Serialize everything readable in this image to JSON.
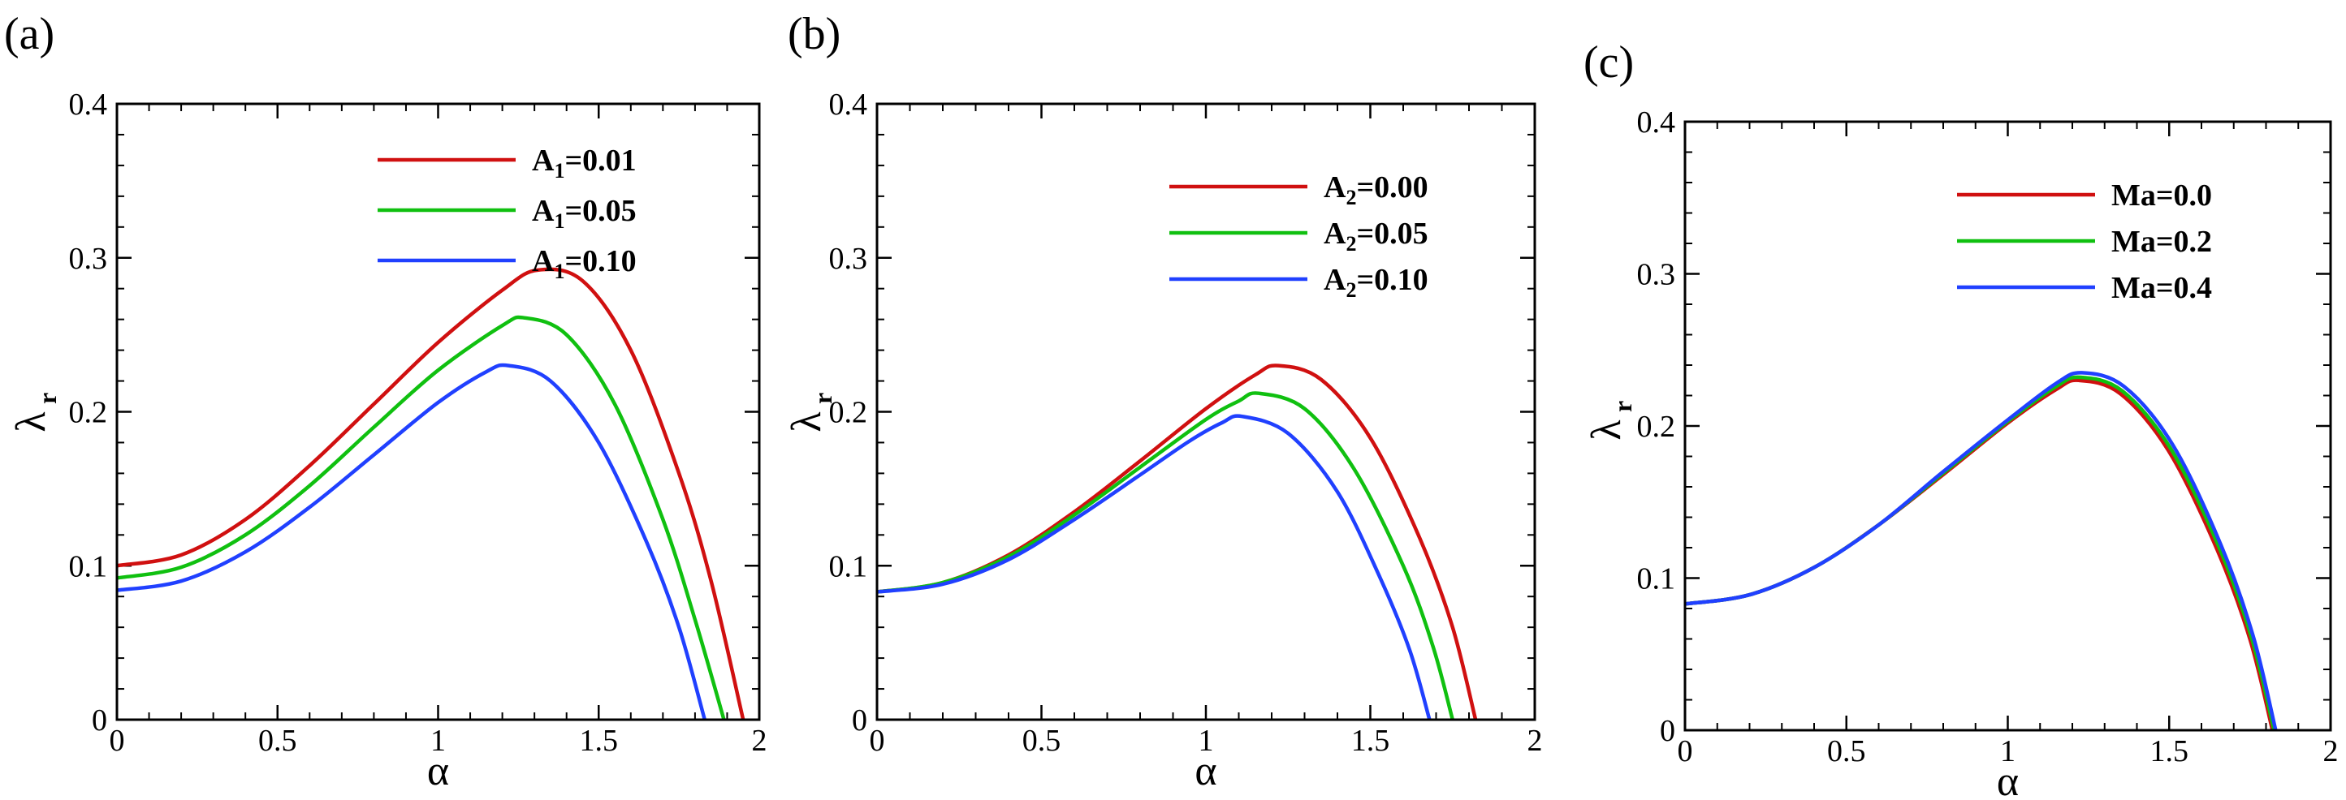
{
  "chart_data": [
    {
      "panel": "(a)",
      "type": "line",
      "xlabel": "α",
      "ylabel_symbol": "λ",
      "ylabel_subscript": "r",
      "xlim": [
        0,
        2
      ],
      "ylim": [
        0,
        0.4
      ],
      "xticks": [
        "0",
        "0.5",
        "1",
        "1.5",
        "2"
      ],
      "yticks": [
        "0",
        "0.1",
        "0.2",
        "0.3",
        "0.4"
      ],
      "legend_position": "top-right",
      "series": [
        {
          "name_main": "A",
          "name_sub": "1",
          "name_rest": "=0.01",
          "color": "#d01010",
          "x": [
            0,
            0.2,
            0.4,
            0.6,
            0.8,
            1.0,
            1.2,
            1.31,
            1.45,
            1.6,
            1.75,
            1.85,
            1.95
          ],
          "y": [
            0.1,
            0.107,
            0.13,
            0.165,
            0.205,
            0.245,
            0.279,
            0.292,
            0.285,
            0.24,
            0.16,
            0.09,
            0.0
          ]
        },
        {
          "name_main": "A",
          "name_sub": "1",
          "name_rest": "=0.05",
          "color": "#10c010",
          "x": [
            0,
            0.2,
            0.4,
            0.6,
            0.8,
            1.0,
            1.2,
            1.27,
            1.4,
            1.55,
            1.7,
            1.8,
            1.89
          ],
          "y": [
            0.092,
            0.099,
            0.12,
            0.152,
            0.19,
            0.227,
            0.256,
            0.261,
            0.25,
            0.205,
            0.13,
            0.065,
            0.0
          ]
        },
        {
          "name_main": "A",
          "name_sub": "1",
          "name_rest": "=0.10",
          "color": "#2040ff",
          "x": [
            0,
            0.2,
            0.4,
            0.6,
            0.8,
            1.0,
            1.15,
            1.22,
            1.35,
            1.5,
            1.65,
            1.75,
            1.83
          ],
          "y": [
            0.084,
            0.09,
            0.109,
            0.138,
            0.172,
            0.206,
            0.226,
            0.23,
            0.22,
            0.18,
            0.115,
            0.06,
            0.0
          ]
        }
      ]
    },
    {
      "panel": "(b)",
      "type": "line",
      "xlabel": "α",
      "ylabel_symbol": "λ",
      "ylabel_subscript": "r",
      "xlim": [
        0,
        2
      ],
      "ylim": [
        0,
        0.4
      ],
      "xticks": [
        "0",
        "0.5",
        "1",
        "1.5",
        "2"
      ],
      "yticks": [
        "0",
        "0.1",
        "0.2",
        "0.3",
        "0.4"
      ],
      "legend_position": "top-right",
      "series": [
        {
          "name_main": "A",
          "name_sub": "2",
          "name_rest": "=0.00",
          "color": "#d01010",
          "x": [
            0,
            0.2,
            0.4,
            0.6,
            0.8,
            1.0,
            1.15,
            1.22,
            1.35,
            1.5,
            1.65,
            1.75,
            1.82
          ],
          "y": [
            0.083,
            0.089,
            0.107,
            0.135,
            0.168,
            0.202,
            0.224,
            0.23,
            0.221,
            0.183,
            0.118,
            0.06,
            0.0
          ]
        },
        {
          "name_main": "A",
          "name_sub": "2",
          "name_rest": "=0.05",
          "color": "#10c010",
          "x": [
            0,
            0.2,
            0.4,
            0.6,
            0.8,
            1.0,
            1.1,
            1.16,
            1.3,
            1.45,
            1.6,
            1.69,
            1.75
          ],
          "y": [
            0.083,
            0.089,
            0.106,
            0.133,
            0.164,
            0.195,
            0.207,
            0.212,
            0.202,
            0.163,
            0.1,
            0.048,
            0.0
          ]
        },
        {
          "name_main": "A",
          "name_sub": "2",
          "name_rest": "=0.10",
          "color": "#2040ff",
          "x": [
            0,
            0.2,
            0.4,
            0.6,
            0.8,
            0.95,
            1.05,
            1.11,
            1.25,
            1.4,
            1.53,
            1.62,
            1.68
          ],
          "y": [
            0.083,
            0.088,
            0.104,
            0.13,
            0.159,
            0.181,
            0.193,
            0.197,
            0.186,
            0.148,
            0.092,
            0.045,
            0.0
          ]
        }
      ]
    },
    {
      "panel": "(c)",
      "type": "line",
      "xlabel": "α",
      "ylabel_symbol": "λ",
      "ylabel_subscript": "r",
      "xlim": [
        0,
        2
      ],
      "ylim": [
        0,
        0.4
      ],
      "xticks": [
        "0",
        "0.5",
        "1",
        "1.5",
        "2"
      ],
      "yticks": [
        "0",
        "0.1",
        "0.2",
        "0.3",
        "0.4"
      ],
      "legend_position": "top-right",
      "series": [
        {
          "name_main": "Ma",
          "name_sub": "",
          "name_rest": "=0.0",
          "color": "#d01010",
          "x": [
            0,
            0.2,
            0.4,
            0.6,
            0.8,
            1.0,
            1.15,
            1.22,
            1.35,
            1.5,
            1.65,
            1.75,
            1.82
          ],
          "y": [
            0.083,
            0.089,
            0.107,
            0.135,
            0.168,
            0.202,
            0.224,
            0.23,
            0.221,
            0.183,
            0.118,
            0.06,
            0.0
          ]
        },
        {
          "name_main": "Ma",
          "name_sub": "",
          "name_rest": "=0.2",
          "color": "#10c010",
          "x": [
            0,
            0.2,
            0.4,
            0.6,
            0.8,
            1.0,
            1.15,
            1.225,
            1.355,
            1.505,
            1.655,
            1.755,
            1.825
          ],
          "y": [
            0.083,
            0.089,
            0.107,
            0.135,
            0.169,
            0.203,
            0.226,
            0.232,
            0.223,
            0.185,
            0.12,
            0.061,
            0.0
          ]
        },
        {
          "name_main": "Ma",
          "name_sub": "",
          "name_rest": "=0.4",
          "color": "#2040ff",
          "x": [
            0,
            0.2,
            0.4,
            0.6,
            0.8,
            1.0,
            1.15,
            1.23,
            1.36,
            1.51,
            1.66,
            1.76,
            1.83
          ],
          "y": [
            0.083,
            0.089,
            0.107,
            0.135,
            0.17,
            0.204,
            0.228,
            0.235,
            0.226,
            0.188,
            0.122,
            0.062,
            0.0
          ]
        }
      ]
    }
  ]
}
